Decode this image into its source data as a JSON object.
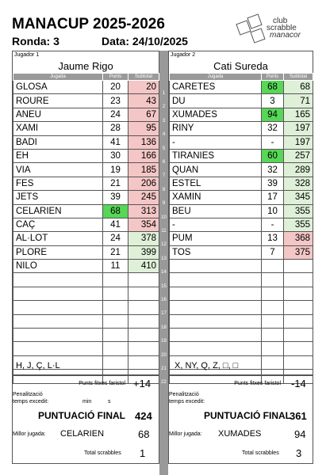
{
  "header": {
    "title": "MANACUP 2025-2026",
    "ronda": "Ronda: 3",
    "data": "Data: 24/10/2025",
    "logo_text": [
      "club",
      "scrabble",
      "manacor"
    ]
  },
  "columns": {
    "jugada": "Jugada",
    "punts": "Punts",
    "subtotal": "Subtotal"
  },
  "player1": {
    "label": "Jugador 1",
    "name": "Jaume Rigo",
    "rows": [
      {
        "word": "GLOSA",
        "pts": "20",
        "sub": "20",
        "pts_color": "",
        "sub_color": "pink"
      },
      {
        "word": "ROURE",
        "pts": "23",
        "sub": "43",
        "pts_color": "",
        "sub_color": "pink"
      },
      {
        "word": "ANEU",
        "pts": "24",
        "sub": "67",
        "pts_color": "",
        "sub_color": "pink"
      },
      {
        "word": "XAMI",
        "pts": "28",
        "sub": "95",
        "pts_color": "",
        "sub_color": "pink"
      },
      {
        "word": "BADI",
        "pts": "41",
        "sub": "136",
        "pts_color": "",
        "sub_color": "pink"
      },
      {
        "word": "EH",
        "pts": "30",
        "sub": "166",
        "pts_color": "",
        "sub_color": "pink"
      },
      {
        "word": "VIA",
        "pts": "19",
        "sub": "185",
        "pts_color": "",
        "sub_color": "pink"
      },
      {
        "word": "FES",
        "pts": "21",
        "sub": "206",
        "pts_color": "",
        "sub_color": "pink"
      },
      {
        "word": "JETS",
        "pts": "39",
        "sub": "245",
        "pts_color": "",
        "sub_color": "pink"
      },
      {
        "word": "CELARIEN",
        "pts": "68",
        "sub": "313",
        "pts_color": "green",
        "sub_color": "pink"
      },
      {
        "word": "CAÇ",
        "pts": "41",
        "sub": "354",
        "pts_color": "",
        "sub_color": "pink"
      },
      {
        "word": "AL·LOT",
        "pts": "24",
        "sub": "378",
        "pts_color": "",
        "sub_color": "lgreen"
      },
      {
        "word": "PLORE",
        "pts": "21",
        "sub": "399",
        "pts_color": "",
        "sub_color": "lgreen"
      },
      {
        "word": "NILO",
        "pts": "11",
        "sub": "410",
        "pts_color": "",
        "sub_color": "lgreen"
      }
    ],
    "remaining": "H, J, Ç, L·L",
    "fixed_label": "Punts fitxes faristol",
    "fixed_value": "+14",
    "penalty_label1": "Penalització",
    "penalty_label2": "temps excedit:",
    "min": "min",
    "s": "s",
    "final_label": "PUNTUACIÓ FINAL",
    "final_value": "424",
    "best_label": "Millor jugada:",
    "best_word": "CELARIEN",
    "best_value": "68",
    "scrabbles_label": "Total scrabbles",
    "scrabbles_value": "1"
  },
  "player2": {
    "label": "Jugador 2",
    "name": "Cati Sureda",
    "rows": [
      {
        "word": "CARETES",
        "pts": "68",
        "sub": "68",
        "pts_color": "green",
        "sub_color": "lgreen"
      },
      {
        "word": "DU",
        "pts": "3",
        "sub": "71",
        "pts_color": "",
        "sub_color": "lgreen"
      },
      {
        "word": "XUMADES",
        "pts": "94",
        "sub": "165",
        "pts_color": "green",
        "sub_color": "lgreen"
      },
      {
        "word": "RINY",
        "pts": "32",
        "sub": "197",
        "pts_color": "",
        "sub_color": "lgreen"
      },
      {
        "word": "-",
        "pts": "-",
        "sub": "197",
        "pts_color": "",
        "sub_color": "lgreen"
      },
      {
        "word": "TIRANIES",
        "pts": "60",
        "sub": "257",
        "pts_color": "green",
        "sub_color": "lgreen"
      },
      {
        "word": "QUAN",
        "pts": "32",
        "sub": "289",
        "pts_color": "",
        "sub_color": "lgreen"
      },
      {
        "word": "ESTEL",
        "pts": "39",
        "sub": "328",
        "pts_color": "",
        "sub_color": "lgreen"
      },
      {
        "word": "XAMIN",
        "pts": "17",
        "sub": "345",
        "pts_color": "",
        "sub_color": "lgreen"
      },
      {
        "word": "BEU",
        "pts": "10",
        "sub": "355",
        "pts_color": "",
        "sub_color": "lgreen"
      },
      {
        "word": "-",
        "pts": "-",
        "sub": "355",
        "pts_color": "",
        "sub_color": "lgreen"
      },
      {
        "word": "PUM",
        "pts": "13",
        "sub": "368",
        "pts_color": "",
        "sub_color": "pink"
      },
      {
        "word": "TOS",
        "pts": "7",
        "sub": "375",
        "pts_color": "",
        "sub_color": "pink"
      }
    ],
    "remaining": "X, NY, Q, Z, □, □",
    "fixed_label": "Punts fitxes faristol",
    "fixed_value": "-14",
    "penalty_label1": "Penalització",
    "penalty_label2": "temps excedit:",
    "final_label": "PUNTUACIÓ FINAL",
    "final_value": "361",
    "best_label": "Millor jugada:",
    "best_word": "XUMADES",
    "best_value": "94",
    "scrabbles_label": "Total scrabbles",
    "scrabbles_value": "3"
  },
  "turns": [
    "1",
    "2",
    "3",
    "4",
    "5",
    "6",
    "7",
    "8",
    "9",
    "10",
    "11",
    "12",
    "13",
    "14",
    "15",
    "16",
    "17",
    "18",
    "19",
    "20",
    "21",
    "22"
  ]
}
